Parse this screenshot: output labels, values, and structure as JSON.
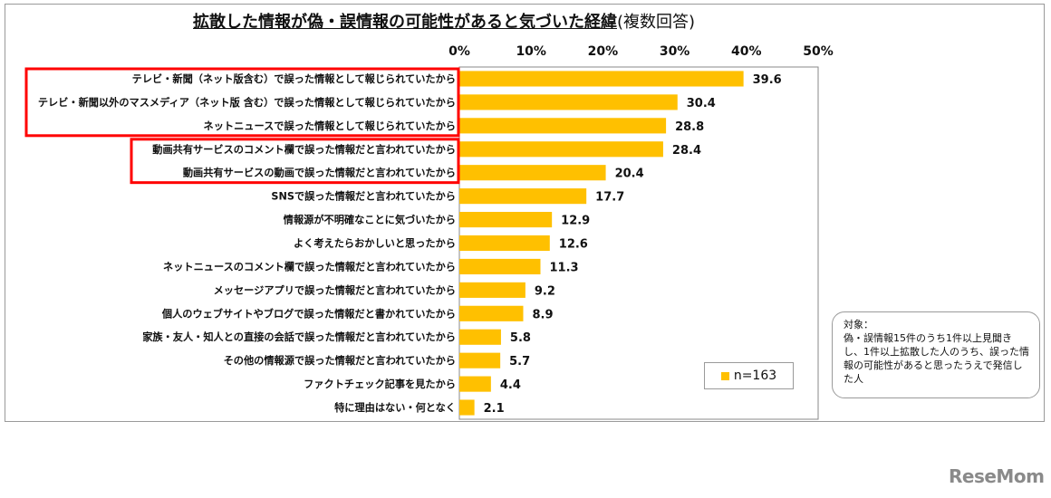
{
  "title": {
    "main": "拡散した情報が偽・誤情報の可能性があると気づいた経緯",
    "sub": "(複数回答)"
  },
  "note": {
    "heading": "対象：",
    "text": "偽・誤情報15件のうち1件以上見聞きし、1件以上拡散した人のうち、誤った情報の可能性があると思ったうえで発信した人"
  },
  "legend": {
    "label": "n=163"
  },
  "logo": {
    "text": "ReseMom"
  },
  "colors": {
    "bar": "#ffc000",
    "highlight": "#ff0000",
    "grid": "#9a9a9a"
  },
  "chart_data": {
    "type": "bar",
    "orientation": "horizontal",
    "title": "拡散した情報が偽・誤情報の可能性があると気づいた経緯(複数回答)",
    "categories": [
      "テレビ・新聞（ネット版含む）で誤った情報として報じられていたから",
      "テレビ・新聞以外のマスメディア（ネット版 含む）で誤った情報として報じられていたから",
      "ネットニュースで誤った情報として報じられていたから",
      "動画共有サービスのコメント欄で誤った情報だと言われていたから",
      "動画共有サービスの動画で誤った情報だと言われていたから",
      "SNSで誤った情報だと言われていたから",
      "情報源が不明確なことに気づいたから",
      "よく考えたらおかしいと思ったから",
      "ネットニュースのコメント欄で誤った情報だと言われていたから",
      "メッセージアプリで誤った情報だと言われていたから",
      "個人のウェブサイトやブログで誤った情報だと書かれていたから",
      "家族・友人・知人との直接の会話で誤った情報だと言われていたから",
      "その他の情報源で誤った情報だと言われていたから",
      "ファクトチェック記事を見たから",
      "特に理由はない・何となく"
    ],
    "series": [
      {
        "name": "n=163",
        "values": [
          39.6,
          30.4,
          28.8,
          28.4,
          20.4,
          17.7,
          12.9,
          12.6,
          11.3,
          9.2,
          8.9,
          5.8,
          5.7,
          4.4,
          2.1
        ]
      }
    ],
    "xticks": [
      "0%",
      "10%",
      "20%",
      "30%",
      "40%",
      "50%"
    ],
    "xlim": [
      0,
      50
    ],
    "axis_position": "top",
    "legend_position": "bottom-right",
    "grid": false,
    "highlight_groups": [
      [
        0,
        2
      ],
      [
        3,
        4
      ]
    ]
  }
}
